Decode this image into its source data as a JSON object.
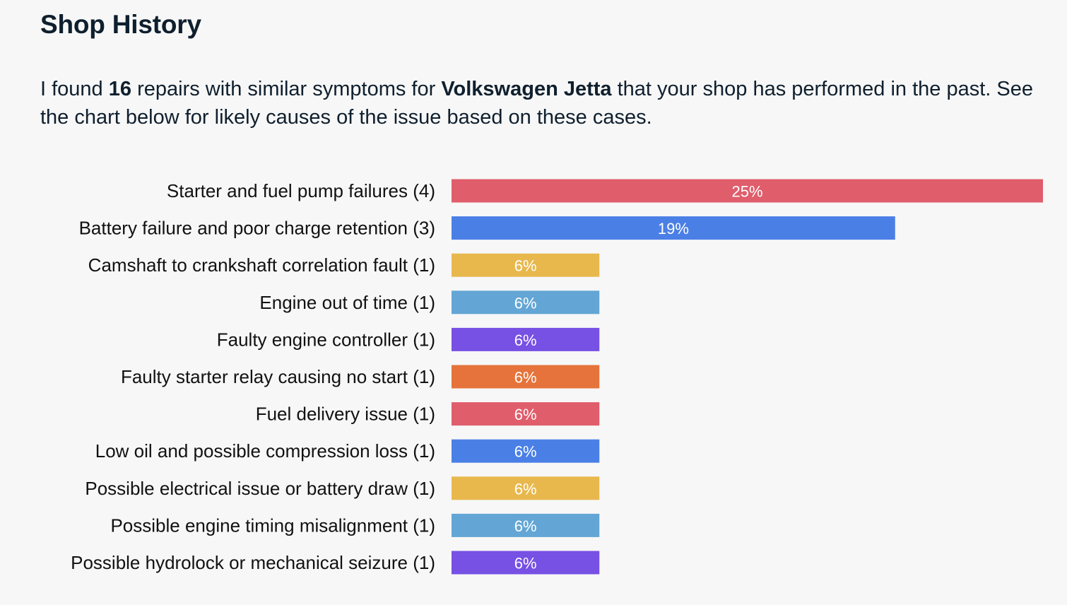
{
  "header": {
    "title": "Shop History"
  },
  "intro": {
    "text_1": "I found ",
    "repair_count": "16",
    "text_2": " repairs with similar symptoms for ",
    "vehicle": "Volkswagen Jetta",
    "text_3": " that your shop has performed in the past. See the chart below for likely causes of the issue based on these cases."
  },
  "chart_data": {
    "type": "bar",
    "orientation": "horizontal",
    "total": 16,
    "categories": [
      "Starter and fuel pump failures (4)",
      "Battery failure and poor charge retention (3)",
      "Camshaft to crankshaft correlation fault (1)",
      "Engine out of time (1)",
      "Faulty engine controller (1)",
      "Faulty starter relay causing no start (1)",
      "Fuel delivery issue (1)",
      "Low oil and possible compression loss (1)",
      "Possible electrical issue or battery draw (1)",
      "Possible engine timing misalignment (1)",
      "Possible hydrolock or mechanical seizure (1)"
    ],
    "counts": [
      4,
      3,
      1,
      1,
      1,
      1,
      1,
      1,
      1,
      1,
      1
    ],
    "value_labels": [
      "25%",
      "19%",
      "6%",
      "6%",
      "6%",
      "6%",
      "6%",
      "6%",
      "6%",
      "6%",
      "6%"
    ],
    "colors": [
      "#e05d6b",
      "#4a7fe6",
      "#e8b84d",
      "#63a6d5",
      "#7750e4",
      "#e5733b",
      "#e05d6b",
      "#4a7fe6",
      "#e8b84d",
      "#63a6d5",
      "#7750e4"
    ],
    "xlim": [
      0,
      4
    ],
    "grid": false,
    "legend": "none"
  }
}
